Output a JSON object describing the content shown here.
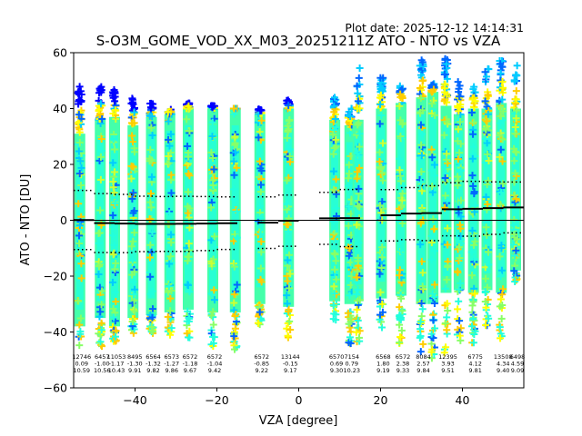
{
  "plot_date": "Plot date: 2025-12-12 14:14:31",
  "chart_data": {
    "type": "scatter",
    "title": "S-O3M_GOME_VOD_XX_M03_20251211Z ATO - NTO vs VZA",
    "xlabel": "VZA [degree]",
    "ylabel": "ATO - NTO [DU]",
    "xlim": [
      -55,
      55
    ],
    "ylim": [
      -60,
      60
    ],
    "xticks": [
      "−40",
      "−20",
      "0",
      "20",
      "40"
    ],
    "xtick_values": [
      -40,
      -20,
      0,
      20,
      40
    ],
    "yticks": [
      "−60",
      "−40",
      "−20",
      "0",
      "20",
      "40",
      "60"
    ],
    "ytick_values": [
      -60,
      -40,
      -20,
      0,
      20,
      40,
      60
    ],
    "colors": {
      "blue": "#0000ff",
      "azure": "#0066ff",
      "cyan": "#00ccff",
      "aqua": "#22ffdd",
      "mint": "#44ffaa",
      "lime": "#88ff66",
      "yellowgreen": "#ccff33",
      "yellow": "#ffff00",
      "amber": "#ffcc00",
      "mean_line": "#000000"
    },
    "bins": [
      {
        "vza": -53.5,
        "count": "12746",
        "mean": "0.09",
        "std": "10.59",
        "ymin": -45,
        "ymax": 48,
        "core_lo": -38,
        "core_hi": 31
      },
      {
        "vza": -48.5,
        "count": "6457",
        "mean": "-1.00",
        "std": "10.56",
        "ymin": -46,
        "ymax": 48,
        "core_lo": -35,
        "core_hi": 36
      },
      {
        "vza": -45.0,
        "count": "11053",
        "mean": "-1.17",
        "std": "10.43",
        "ymin": -44,
        "ymax": 47,
        "core_lo": -38,
        "core_hi": 37
      },
      {
        "vza": -40.5,
        "count": "8495",
        "mean": "-1.30",
        "std": "9.91",
        "ymin": -41,
        "ymax": 44,
        "core_lo": -35,
        "core_hi": 34
      },
      {
        "vza": -36.0,
        "count": "6564",
        "mean": "-1.32",
        "std": "9.82",
        "ymin": -41,
        "ymax": 42,
        "core_lo": -34,
        "core_hi": 37
      },
      {
        "vza": -31.5,
        "count": "6573",
        "mean": "-1.27",
        "std": "9.86",
        "ymin": -43,
        "ymax": 40,
        "core_lo": -33,
        "core_hi": 38
      },
      {
        "vza": -27.0,
        "count": "6572",
        "mean": "-1.18",
        "std": "9.67",
        "ymin": -43,
        "ymax": 42,
        "core_lo": -32,
        "core_hi": 40
      },
      {
        "vza": -21.0,
        "count": "6572",
        "mean": "-1.04",
        "std": "9.42",
        "ymin": -46,
        "ymax": 41,
        "core_lo": -33,
        "core_hi": 40
      },
      {
        "vza": -15.5,
        "count": "",
        "mean": "",
        "std": "",
        "ymin": -47,
        "ymax": 40,
        "core_lo": -33,
        "core_hi": 40
      },
      {
        "vza": -9.5,
        "count": "6572",
        "mean": "-0.85",
        "std": "9.22",
        "ymin": -38,
        "ymax": 40,
        "core_lo": -30,
        "core_hi": 38
      },
      {
        "vza": -2.5,
        "count": "13144",
        "mean": "-0.15",
        "std": "9.17",
        "ymin": -42,
        "ymax": 43,
        "core_lo": -31,
        "core_hi": 40
      },
      {
        "vza": 8.8,
        "count": "6570",
        "mean": "0.69",
        "std": "9.30",
        "ymin": -39,
        "ymax": 44,
        "core_lo": -29,
        "core_hi": 36
      },
      {
        "vza": 12.5,
        "count": "7154",
        "mean": "0.79",
        "std": "10.23",
        "ymin": -45,
        "ymax": 40,
        "core_lo": -30,
        "core_hi": 34
      },
      {
        "vza": 14.5,
        "count": "",
        "mean": "",
        "std": "",
        "ymin": -44,
        "ymax": 55,
        "core_lo": -29,
        "core_hi": 36
      },
      {
        "vza": 20.2,
        "count": "6568",
        "mean": "1.80",
        "std": "9.19",
        "ymin": -39,
        "ymax": 51,
        "core_lo": -28,
        "core_hi": 40
      },
      {
        "vza": 25.0,
        "count": "6572",
        "mean": "2.38",
        "std": "9.33",
        "ymin": -45,
        "ymax": 49,
        "core_lo": -27,
        "core_hi": 42
      },
      {
        "vza": 30.0,
        "count": "8084",
        "mean": "2.57",
        "std": "9.84",
        "ymin": -48,
        "ymax": 58,
        "core_lo": -30,
        "core_hi": 44
      },
      {
        "vza": 32.8,
        "count": "",
        "mean": "",
        "std": "",
        "ymin": -52,
        "ymax": 49,
        "core_lo": -30,
        "core_hi": 46
      },
      {
        "vza": 36.0,
        "count": "12395",
        "mean": "3.93",
        "std": "9.51",
        "ymin": -48,
        "ymax": 58,
        "core_lo": -26,
        "core_hi": 41
      },
      {
        "vza": 39.2,
        "count": "",
        "mean": "",
        "std": "",
        "ymin": -44,
        "ymax": 50,
        "core_lo": -25,
        "core_hi": 38
      },
      {
        "vza": 42.7,
        "count": "6775",
        "mean": "4.12",
        "std": "9.81",
        "ymin": -45,
        "ymax": 48,
        "core_lo": -26,
        "core_hi": 40
      },
      {
        "vza": 46.0,
        "count": "",
        "mean": "",
        "std": "",
        "ymin": -38,
        "ymax": 55,
        "core_lo": -25,
        "core_hi": 40
      },
      {
        "vza": 49.5,
        "count": "13508",
        "mean": "4.34",
        "std": "9.40",
        "ymin": -43,
        "ymax": 58,
        "core_lo": -26,
        "core_hi": 42
      },
      {
        "vza": 53.0,
        "count": "6498",
        "mean": "4.59",
        "std": "9.09",
        "ymin": -22,
        "ymax": 58,
        "core_lo": -18,
        "core_hi": 40
      }
    ],
    "mean_segments": [
      {
        "x0": -55,
        "x1": -50,
        "mean": 0.09,
        "std": 10.59
      },
      {
        "x0": -50,
        "x1": -45,
        "mean": -1.0,
        "std": 10.56
      },
      {
        "x0": -45,
        "x1": -40,
        "mean": -1.17,
        "std": 10.43
      },
      {
        "x0": -40,
        "x1": -35,
        "mean": -1.3,
        "std": 9.91
      },
      {
        "x0": -35,
        "x1": -30,
        "mean": -1.32,
        "std": 9.82
      },
      {
        "x0": -30,
        "x1": -25,
        "mean": -1.27,
        "std": 9.86
      },
      {
        "x0": -25,
        "x1": -20,
        "mean": -1.18,
        "std": 9.67
      },
      {
        "x0": -20,
        "x1": -15,
        "mean": -1.04,
        "std": 9.42
      },
      {
        "x0": -10,
        "x1": -5,
        "mean": -0.85,
        "std": 9.22
      },
      {
        "x0": -5,
        "x1": 0,
        "mean": -0.15,
        "std": 9.17
      },
      {
        "x0": 5,
        "x1": 10,
        "mean": 0.69,
        "std": 9.3
      },
      {
        "x0": 10,
        "x1": 15,
        "mean": 0.79,
        "std": 10.23
      },
      {
        "x0": 20,
        "x1": 25,
        "mean": 1.8,
        "std": 9.19
      },
      {
        "x0": 25,
        "x1": 30,
        "mean": 2.38,
        "std": 9.33
      },
      {
        "x0": 30,
        "x1": 35,
        "mean": 2.57,
        "std": 9.84
      },
      {
        "x0": 35,
        "x1": 40,
        "mean": 3.93,
        "std": 9.51
      },
      {
        "x0": 40,
        "x1": 45,
        "mean": 4.12,
        "std": 9.81
      },
      {
        "x0": 45,
        "x1": 50,
        "mean": 4.34,
        "std": 9.4
      },
      {
        "x0": 50,
        "x1": 55,
        "mean": 4.59,
        "std": 9.09
      }
    ]
  }
}
